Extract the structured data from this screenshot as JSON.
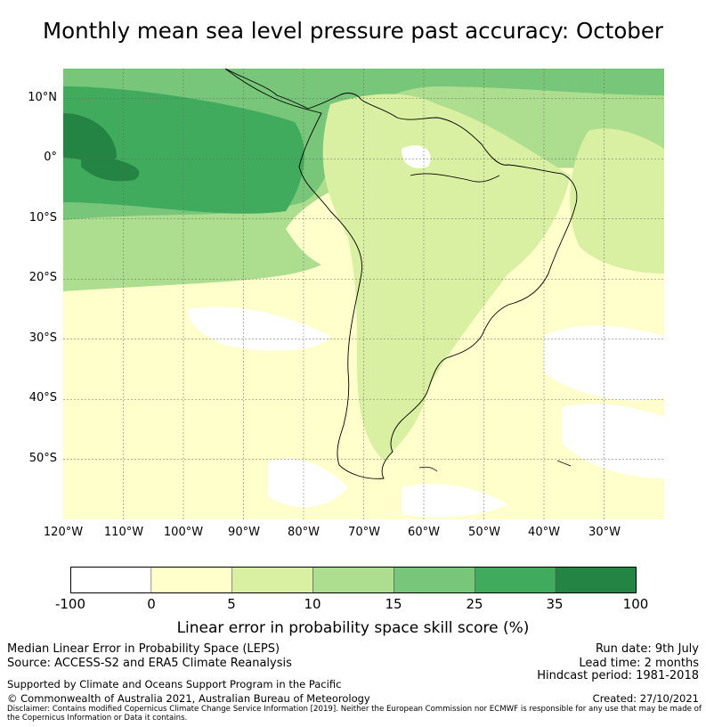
{
  "title": "Monthly mean sea level pressure past accuracy: October",
  "map": {
    "lat_labels": [
      "10°N",
      "0°",
      "10°S",
      "20°S",
      "30°S",
      "40°S",
      "50°S"
    ],
    "lon_labels": [
      "120°W",
      "110°W",
      "100°W",
      "90°W",
      "80°W",
      "70°W",
      "60°W",
      "50°W",
      "40°W",
      "30°W"
    ],
    "extent": {
      "lon": [
        -120,
        -20
      ],
      "lat": [
        -60,
        15
      ]
    }
  },
  "colorbar": {
    "label": "Linear error in probability space skill score (%)",
    "ticks": [
      "-100",
      "0",
      "5",
      "10",
      "15",
      "25",
      "35",
      "100"
    ],
    "colors": [
      "#ffffff",
      "#ffffcc",
      "#d9f0a3",
      "#addd8e",
      "#78c679",
      "#41ab5d",
      "#238443"
    ]
  },
  "footer": {
    "left_line1": "Median Linear Error in Probability Space (LEPS)",
    "left_line2": "Source: ACCESS-S2 and ERA5 Climate Reanalysis",
    "left_line3": "Supported by Climate and Oceans Support Program in the Pacific",
    "left_line4": "© Commonwealth of Australia 2021, Australian Bureau of Meteorology",
    "right_line1": "Run date: 9th July",
    "right_line2": "Lead time: 2 months",
    "right_line3": "Hindcast period: 1981-2018",
    "right_line4": "Created: 27/10/2021",
    "disclaimer": "Disclaimer: Contains modified Copernicus Climate Change Service Information [2019]. Neither the European Commission nor ECMWF is responsible for any use that may be made of the Copernicus Information or Data it contains."
  }
}
